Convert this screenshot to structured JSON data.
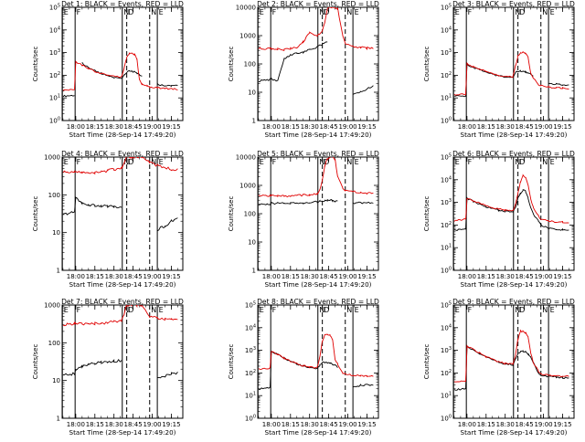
{
  "common": {
    "xlabel": "Start Time (28-Sep-14 17:49:20)",
    "ylabel": "Counts/sec",
    "xticks": [
      "18:00",
      "18:15",
      "18:30",
      "18:45",
      "19:00",
      "19:15"
    ],
    "markers": [
      {
        "label": "E",
        "at": "17:49:30",
        "style": "solid"
      },
      {
        "label": "F",
        "at": "17:59:30",
        "style": "solid"
      },
      {
        "label": "N",
        "at": "18:36:30",
        "style": "solid"
      },
      {
        "label": "D",
        "at": "18:40:00",
        "style": "dashed"
      },
      {
        "label": "N",
        "at": "18:58:00",
        "style": "dashed"
      },
      {
        "label": "E",
        "at": "19:04:00",
        "style": "solid"
      }
    ],
    "colors": {
      "events": "#000000",
      "lld": "#e00000"
    }
  },
  "chart_data": [
    {
      "type": "line",
      "title": "Det 1: BLACK = Events, RED = LLD",
      "yscale": "log",
      "ylim": [
        1,
        100000
      ],
      "yticklabels": [
        "10^0",
        "10^1",
        "10^2",
        "10^3",
        "10^4",
        "10^5"
      ],
      "x": [
        "17:50",
        "17:59",
        "18:00",
        "18:05",
        "18:10",
        "18:15",
        "18:20",
        "18:25",
        "18:30",
        "18:36",
        "18:38",
        "18:40",
        "18:42",
        "18:44",
        "18:46",
        "18:48",
        "18:50",
        "18:52",
        "18:56",
        "18:58",
        "19:04",
        "19:10",
        "19:15",
        "19:20"
      ],
      "series": [
        {
          "name": "Events",
          "values": [
            12,
            13,
            null,
            350,
            220,
            160,
            120,
            95,
            80,
            72,
            100,
            130,
            150,
            150,
            140,
            120,
            110,
            85,
            null,
            null,
            40,
            35,
            35,
            34
          ]
        },
        {
          "name": "LLD",
          "values": [
            22,
            23,
            400,
            280,
            200,
            150,
            120,
            100,
            90,
            85,
            220,
            600,
            900,
            900,
            850,
            500,
            60,
            40,
            35,
            30,
            28,
            26,
            25,
            24
          ]
        }
      ]
    },
    {
      "type": "line",
      "title": "Det 2: BLACK = Events, RED = LLD",
      "yscale": "log",
      "ylim": [
        1,
        10000
      ],
      "yticklabels": [
        "1",
        "10",
        "100",
        "1000",
        "10000"
      ],
      "x": [
        "17:50",
        "17:59",
        "18:00",
        "18:05",
        "18:10",
        "18:15",
        "18:20",
        "18:25",
        "18:30",
        "18:36",
        "18:38",
        "18:40",
        "18:42",
        "18:44",
        "18:46",
        "18:48",
        "18:50",
        "18:52",
        "18:56",
        "18:58",
        "19:04",
        "19:10",
        "19:15",
        "19:20"
      ],
      "series": [
        {
          "name": "Events",
          "values": [
            25,
            28,
            30,
            25,
            150,
            200,
            240,
            260,
            330,
            400,
            450,
            500,
            550,
            600,
            null,
            null,
            null,
            null,
            null,
            null,
            8,
            10,
            13,
            16
          ]
        },
        {
          "name": "LLD",
          "values": [
            350,
            350,
            340,
            330,
            320,
            350,
            380,
            600,
            1300,
            1000,
            1200,
            1500,
            3000,
            9000,
            10000,
            10000,
            10000,
            9000,
            1000,
            500,
            400,
            380,
            360,
            350
          ]
        }
      ]
    },
    {
      "type": "line",
      "title": "Det 3: BLACK = Events, RED = LLD",
      "yscale": "log",
      "ylim": [
        1,
        100000
      ],
      "yticklabels": [
        "10^0",
        "10^1",
        "10^2",
        "10^3",
        "10^4",
        "10^5"
      ],
      "x": [
        "17:50",
        "17:59",
        "18:00",
        "18:05",
        "18:10",
        "18:15",
        "18:20",
        "18:25",
        "18:30",
        "18:36",
        "18:38",
        "18:40",
        "18:42",
        "18:44",
        "18:46",
        "18:48",
        "18:50",
        "18:52",
        "18:56",
        "18:58",
        "19:04",
        "19:10",
        "19:15",
        "19:20"
      ],
      "series": [
        {
          "name": "Events",
          "values": [
            12,
            12,
            300,
            220,
            170,
            140,
            110,
            95,
            85,
            80,
            130,
            150,
            160,
            150,
            140,
            120,
            110,
            90,
            null,
            null,
            45,
            40,
            38,
            38
          ]
        },
        {
          "name": "LLD",
          "values": [
            14,
            15,
            320,
            240,
            180,
            150,
            120,
            100,
            90,
            85,
            250,
            700,
            1000,
            1000,
            900,
            600,
            120,
            80,
            40,
            35,
            30,
            28,
            27,
            26
          ]
        }
      ]
    },
    {
      "type": "line",
      "title": "Det 4: BLACK = Events, RED = LLD",
      "yscale": "log",
      "ylim": [
        1,
        1000
      ],
      "yticklabels": [
        "1",
        "10",
        "100",
        "1000"
      ],
      "x": [
        "17:50",
        "17:59",
        "18:00",
        "18:05",
        "18:10",
        "18:15",
        "18:20",
        "18:25",
        "18:30",
        "18:36",
        "18:38",
        "18:40",
        "18:42",
        "18:44",
        "18:46",
        "18:48",
        "18:50",
        "18:52",
        "18:56",
        "18:58",
        "19:04",
        "19:10",
        "19:15",
        "19:20"
      ],
      "series": [
        {
          "name": "Events",
          "values": [
            30,
            35,
            80,
            60,
            55,
            52,
            50,
            50,
            48,
            48,
            null,
            null,
            null,
            null,
            null,
            null,
            null,
            null,
            null,
            null,
            12,
            15,
            20,
            25
          ]
        },
        {
          "name": "LLD",
          "values": [
            400,
            420,
            420,
            400,
            380,
            380,
            400,
            430,
            480,
            500,
            700,
            1000,
            1000,
            1000,
            1000,
            1000,
            1000,
            1000,
            800,
            700,
            600,
            520,
            480,
            460
          ]
        }
      ]
    },
    {
      "type": "line",
      "title": "Det 5: BLACK = Events, RED = LLD",
      "yscale": "log",
      "ylim": [
        1,
        10000
      ],
      "yticklabels": [
        "1",
        "10",
        "100",
        "1000",
        "10000"
      ],
      "x": [
        "17:50",
        "17:59",
        "18:00",
        "18:05",
        "18:10",
        "18:15",
        "18:20",
        "18:25",
        "18:30",
        "18:36",
        "18:38",
        "18:40",
        "18:42",
        "18:44",
        "18:46",
        "18:48",
        "18:50",
        "18:52",
        "18:56",
        "18:58",
        "19:04",
        "19:10",
        "19:15",
        "19:20"
      ],
      "series": [
        {
          "name": "Events",
          "values": [
            210,
            220,
            240,
            230,
            230,
            240,
            240,
            240,
            250,
            260,
            270,
            280,
            290,
            300,
            300,
            290,
            280,
            270,
            null,
            null,
            240,
            240,
            240,
            240
          ]
        },
        {
          "name": "LLD",
          "values": [
            420,
            430,
            440,
            420,
            420,
            430,
            440,
            450,
            470,
            500,
            700,
            1500,
            5000,
            9000,
            10000,
            10000,
            8000,
            2000,
            800,
            700,
            600,
            560,
            540,
            530
          ]
        }
      ]
    },
    {
      "type": "line",
      "title": "Det 6: BLACK = Events, RED = LLD",
      "yscale": "log",
      "ylim": [
        1,
        100000
      ],
      "yticklabels": [
        "10^0",
        "10^1",
        "10^2",
        "10^3",
        "10^4",
        "10^5"
      ],
      "x": [
        "17:50",
        "17:59",
        "18:00",
        "18:05",
        "18:10",
        "18:15",
        "18:20",
        "18:25",
        "18:30",
        "18:36",
        "18:38",
        "18:40",
        "18:42",
        "18:44",
        "18:46",
        "18:48",
        "18:50",
        "18:52",
        "18:56",
        "18:58",
        "19:04",
        "19:10",
        "19:15",
        "19:20"
      ],
      "series": [
        {
          "name": "Events",
          "values": [
            60,
            65,
            1500,
            1100,
            850,
            650,
            550,
            450,
            400,
            380,
            600,
            1500,
            2500,
            3500,
            3000,
            1500,
            600,
            300,
            150,
            100,
            70,
            65,
            62,
            60
          ]
        },
        {
          "name": "LLD",
          "values": [
            150,
            180,
            1500,
            1200,
            900,
            700,
            600,
            500,
            450,
            420,
            800,
            2500,
            8000,
            15000,
            12000,
            6000,
            1500,
            600,
            250,
            180,
            150,
            140,
            135,
            130
          ]
        }
      ]
    },
    {
      "type": "line",
      "title": "Det 7: BLACK = Events, RED = LLD",
      "yscale": "log",
      "ylim": [
        1,
        1000
      ],
      "yticklabels": [
        "1",
        "10",
        "100",
        "1000"
      ],
      "x": [
        "17:50",
        "17:59",
        "18:00",
        "18:05",
        "18:10",
        "18:15",
        "18:20",
        "18:25",
        "18:30",
        "18:36",
        "18:38",
        "18:40",
        "18:42",
        "18:44",
        "18:46",
        "18:48",
        "18:50",
        "18:52",
        "18:56",
        "18:58",
        "19:04",
        "19:10",
        "19:15",
        "19:20"
      ],
      "series": [
        {
          "name": "Events",
          "values": [
            14,
            15,
            20,
            24,
            27,
            29,
            30,
            31,
            32,
            34,
            null,
            null,
            null,
            null,
            null,
            null,
            null,
            null,
            null,
            null,
            11,
            13,
            15,
            16
          ]
        },
        {
          "name": "LLD",
          "values": [
            300,
            320,
            320,
            310,
            310,
            320,
            330,
            340,
            360,
            380,
            600,
            1000,
            1000,
            1000,
            1000,
            1000,
            1000,
            1000,
            600,
            500,
            450,
            420,
            400,
            390
          ]
        }
      ]
    },
    {
      "type": "line",
      "title": "Det 8: BLACK = Events, RED = LLD",
      "yscale": "log",
      "ylim": [
        1,
        100000
      ],
      "yticklabels": [
        "10^0",
        "10^1",
        "10^2",
        "10^3",
        "10^4",
        "10^5"
      ],
      "x": [
        "17:50",
        "17:59",
        "18:00",
        "18:05",
        "18:10",
        "18:15",
        "18:20",
        "18:25",
        "18:30",
        "18:36",
        "18:38",
        "18:40",
        "18:42",
        "18:44",
        "18:46",
        "18:48",
        "18:50",
        "18:52",
        "18:56",
        "18:58",
        "19:04",
        "19:10",
        "19:15",
        "19:20"
      ],
      "series": [
        {
          "name": "Events",
          "values": [
            20,
            22,
            900,
            650,
            450,
            320,
            250,
            200,
            170,
            160,
            220,
            280,
            300,
            290,
            280,
            250,
            220,
            180,
            null,
            null,
            25,
            28,
            30,
            30
          ]
        },
        {
          "name": "LLD",
          "values": [
            150,
            160,
            900,
            650,
            450,
            330,
            260,
            210,
            180,
            170,
            500,
            2500,
            5000,
            5000,
            4500,
            3000,
            400,
            250,
            100,
            90,
            80,
            75,
            72,
            70
          ]
        }
      ]
    },
    {
      "type": "line",
      "title": "Det 9: BLACK = Events, RED = LLD",
      "yscale": "log",
      "ylim": [
        1,
        100000
      ],
      "yticklabels": [
        "10^0",
        "10^1",
        "10^2",
        "10^3",
        "10^4",
        "10^5"
      ],
      "x": [
        "17:50",
        "17:59",
        "18:00",
        "18:05",
        "18:10",
        "18:15",
        "18:20",
        "18:25",
        "18:30",
        "18:36",
        "18:38",
        "18:40",
        "18:42",
        "18:44",
        "18:46",
        "18:48",
        "18:50",
        "18:52",
        "18:56",
        "18:58",
        "19:04",
        "19:10",
        "19:15",
        "19:20"
      ],
      "series": [
        {
          "name": "Events",
          "values": [
            18,
            20,
            1500,
            1000,
            700,
            500,
            380,
            300,
            250,
            230,
            400,
            700,
            900,
            900,
            850,
            700,
            500,
            300,
            100,
            80,
            70,
            65,
            62,
            60
          ]
        },
        {
          "name": "LLD",
          "values": [
            40,
            45,
            1500,
            1100,
            750,
            520,
            400,
            320,
            260,
            240,
            600,
            3000,
            7000,
            7000,
            6000,
            4000,
            800,
            300,
            120,
            90,
            80,
            75,
            72,
            70
          ]
        }
      ]
    }
  ]
}
